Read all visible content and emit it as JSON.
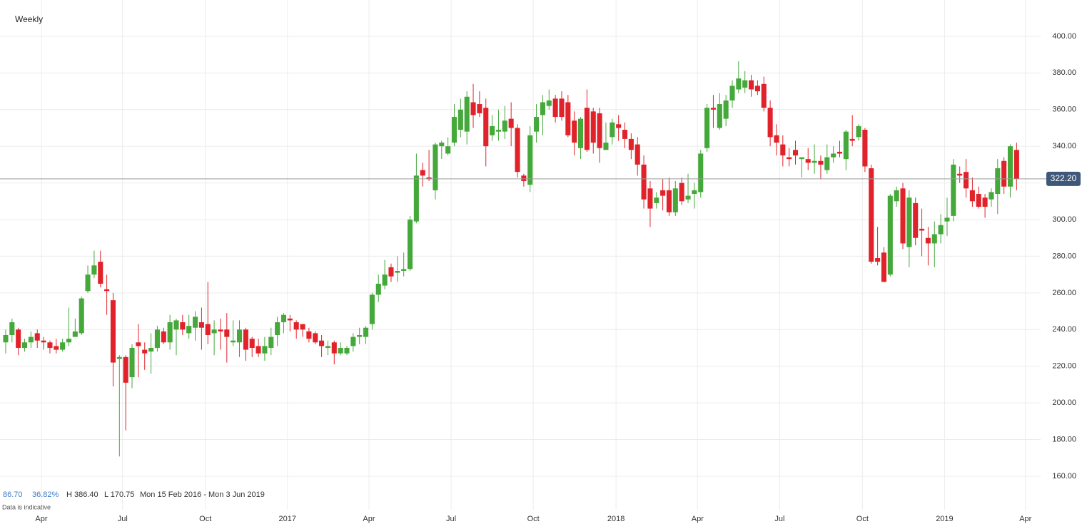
{
  "chart_data": {
    "type": "candlestick",
    "title": "Weekly",
    "x": [
      0,
      1,
      2,
      3,
      4,
      5,
      6,
      7,
      8,
      9,
      10,
      11,
      12,
      13,
      14,
      15,
      16,
      17,
      18,
      19,
      20,
      21,
      22,
      23,
      24,
      25,
      26,
      27,
      28,
      29,
      30,
      31,
      32,
      33,
      34,
      35,
      36,
      37,
      38,
      39,
      40,
      41,
      42,
      43,
      44,
      45,
      46,
      47,
      48,
      49,
      50,
      51,
      52,
      53,
      54,
      55,
      56,
      57,
      58,
      59,
      60,
      61,
      62,
      63,
      64,
      65,
      66,
      67,
      68,
      69,
      70,
      71,
      72,
      73,
      74,
      75,
      76,
      77,
      78,
      79,
      80,
      81,
      82,
      83,
      84,
      85,
      86,
      87,
      88,
      89,
      90,
      91,
      92,
      93,
      94,
      95,
      96,
      97,
      98,
      99,
      100,
      101,
      102,
      103,
      104,
      105,
      106,
      107,
      108,
      109,
      110,
      111,
      112,
      113,
      114,
      115,
      116,
      117,
      118,
      119,
      120,
      121,
      122,
      123,
      124,
      125,
      126,
      127,
      128,
      129,
      130,
      131,
      132,
      133,
      134,
      135,
      136,
      137,
      138,
      139,
      140,
      141,
      142,
      143,
      144,
      145,
      146,
      147,
      148,
      149,
      150,
      151,
      152,
      153,
      154,
      155,
      156,
      157,
      158,
      159,
      160
    ],
    "open": [
      233,
      237,
      240,
      230,
      233,
      238,
      234,
      233,
      231,
      229,
      233,
      236,
      238,
      261,
      270,
      277,
      262,
      256,
      224,
      225,
      214,
      233,
      229,
      228,
      230,
      239,
      233,
      240,
      244,
      238,
      241,
      244,
      243,
      238,
      240,
      240,
      233,
      233,
      240,
      235,
      231,
      227,
      230,
      237,
      244,
      246,
      244,
      243,
      239,
      238,
      234,
      230,
      233,
      227,
      227,
      231,
      236,
      236,
      243,
      259,
      264,
      274,
      271,
      272,
      273,
      299,
      327,
      323,
      316,
      340,
      336,
      342,
      349,
      348,
      364,
      363,
      361,
      346,
      348,
      348,
      355,
      350,
      324,
      319,
      348,
      357,
      362,
      366,
      366,
      364,
      354,
      339,
      361,
      359,
      358,
      338,
      345,
      352,
      349,
      344,
      341,
      330,
      317,
      309,
      316,
      316,
      304,
      320,
      311,
      314,
      315,
      339,
      361,
      350,
      355,
      365,
      371,
      372,
      376,
      373,
      374,
      361,
      346,
      341,
      334,
      338,
      333,
      333,
      331,
      332,
      327,
      334,
      337,
      333,
      344,
      345,
      349,
      328,
      279,
      282,
      270,
      310,
      317,
      285,
      309,
      295,
      290,
      287,
      292,
      299,
      302,
      325,
      326,
      316,
      314,
      312,
      311,
      314,
      332,
      318,
      338
    ],
    "high": [
      240,
      246,
      241,
      235,
      239,
      240,
      236,
      234,
      235,
      235,
      252,
      246,
      258,
      275,
      283,
      283,
      270,
      260,
      226,
      226,
      232,
      243,
      233,
      238,
      242,
      241,
      248,
      246,
      248,
      248,
      250,
      252,
      266,
      245,
      246,
      249,
      245,
      245,
      241,
      236,
      235,
      236,
      241,
      247,
      249,
      248,
      245,
      243,
      241,
      239,
      237,
      234,
      234,
      233,
      231,
      238,
      241,
      242,
      260,
      270,
      278,
      276,
      280,
      282,
      302,
      336,
      331,
      338,
      342,
      343,
      345,
      363,
      366,
      370,
      374,
      370,
      366,
      357,
      360,
      362,
      364,
      352,
      325,
      351,
      363,
      368,
      371,
      368,
      370,
      368,
      359,
      356,
      371,
      361,
      361,
      353,
      355,
      357,
      353,
      347,
      345,
      335,
      321,
      315,
      322,
      323,
      321,
      323,
      325,
      320,
      338,
      363,
      368,
      369,
      368,
      376,
      386.4,
      381,
      379,
      376,
      378,
      365,
      352,
      346,
      339,
      343,
      334,
      339,
      341,
      335,
      341,
      340,
      343,
      349,
      357,
      352,
      350,
      330,
      296,
      285,
      314,
      318,
      320,
      316,
      312,
      306,
      296,
      299,
      303,
      312,
      333,
      329,
      333,
      323,
      318,
      314,
      317,
      333,
      334,
      341,
      342
    ],
    "low": [
      227,
      233,
      226,
      228,
      230,
      230,
      229,
      227,
      227,
      228,
      231,
      236,
      237,
      260,
      268,
      263,
      248,
      209,
      170.75,
      185,
      208,
      214,
      218,
      216,
      228,
      232,
      229,
      226,
      237,
      235,
      234,
      229,
      232,
      226,
      229,
      222,
      231,
      225,
      223,
      225,
      225,
      223,
      226,
      231,
      238,
      239,
      235,
      236,
      233,
      232,
      225,
      226,
      221,
      226,
      226,
      228,
      232,
      232,
      240,
      255,
      262,
      266,
      266,
      269,
      272,
      298,
      318,
      321,
      311,
      333,
      335,
      340,
      345,
      341,
      350,
      356,
      329,
      343,
      343,
      344,
      340,
      323,
      318,
      315,
      342,
      346,
      360,
      353,
      354,
      345,
      335,
      333,
      337,
      336,
      331,
      338,
      341,
      343,
      339,
      333,
      324,
      306,
      296,
      306,
      305,
      302,
      302,
      308,
      309,
      306,
      312,
      337,
      350,
      349,
      351,
      361,
      369,
      369,
      367,
      368,
      359,
      340,
      335,
      329,
      329,
      330,
      323,
      327,
      325,
      322,
      325,
      331,
      334,
      327,
      340,
      343,
      326,
      276,
      275,
      266,
      269,
      307,
      284,
      274,
      286,
      280,
      275,
      274,
      287,
      291,
      299,
      320,
      312,
      307,
      306,
      301,
      307,
      303,
      314,
      312,
      316
    ],
    "close": [
      237,
      244,
      230,
      233,
      236,
      234,
      233,
      230,
      229,
      233,
      235,
      239,
      257,
      270,
      275,
      265,
      261,
      222,
      225,
      211,
      230,
      231,
      227,
      230,
      240,
      233,
      244,
      245,
      240,
      242,
      247,
      241,
      237,
      240,
      239,
      236,
      234,
      240,
      229,
      230,
      227,
      231,
      236,
      244,
      248,
      245,
      240,
      240,
      235,
      233,
      231,
      231,
      227,
      230,
      230,
      236,
      237,
      241,
      259,
      265,
      270,
      269,
      272,
      273,
      300,
      324,
      324,
      322,
      341,
      342,
      340,
      356,
      360,
      367,
      357,
      358,
      340,
      351,
      349,
      354,
      350,
      326,
      321,
      346,
      356,
      364,
      365,
      356,
      356,
      346,
      342,
      355,
      338,
      342,
      339,
      342,
      353,
      350,
      344,
      338,
      330,
      311,
      306,
      312,
      313,
      304,
      317,
      310,
      313,
      316,
      336,
      361,
      360,
      363,
      365,
      373,
      377,
      376,
      371,
      370,
      361,
      345,
      342,
      335,
      333,
      335,
      334,
      331,
      332,
      330,
      334,
      336,
      336,
      348,
      343,
      351,
      329,
      277,
      277,
      266,
      313,
      316,
      287,
      312,
      290,
      294,
      287,
      292,
      297,
      301,
      330,
      324,
      317,
      310,
      307,
      307,
      315,
      328,
      318,
      340,
      322.2
    ],
    "up_color": "#45a83a",
    "down_color": "#e1222a",
    "xlim": [
      -0.9,
      163.8
    ],
    "xticks": [
      {
        "value": 5.65,
        "label": "Apr"
      },
      {
        "value": 18.5,
        "label": "Jul"
      },
      {
        "value": 31.6,
        "label": "Oct"
      },
      {
        "value": 44.6,
        "label": "2017"
      },
      {
        "value": 57.5,
        "label": "Apr"
      },
      {
        "value": 70.5,
        "label": "Jul"
      },
      {
        "value": 83.5,
        "label": "Oct"
      },
      {
        "value": 96.6,
        "label": "2018"
      },
      {
        "value": 109.5,
        "label": "Apr"
      },
      {
        "value": 122.5,
        "label": "Jul"
      },
      {
        "value": 135.6,
        "label": "Oct"
      },
      {
        "value": 148.6,
        "label": "2019"
      },
      {
        "value": 161.4,
        "label": "Apr"
      }
    ],
    "ylim": [
      141.7,
      419.8
    ],
    "yticks": [
      {
        "value": 160,
        "label": "160.00"
      },
      {
        "value": 180,
        "label": "180.00"
      },
      {
        "value": 200,
        "label": "200.00"
      },
      {
        "value": 220,
        "label": "220.00"
      },
      {
        "value": 240,
        "label": "240.00"
      },
      {
        "value": 260,
        "label": "260.00"
      },
      {
        "value": 280,
        "label": "280.00"
      },
      {
        "value": 300,
        "label": "300.00"
      },
      {
        "value": 320,
        "label": "320.00"
      },
      {
        "value": 340,
        "label": "340.00"
      },
      {
        "value": 360,
        "label": "360.00"
      },
      {
        "value": 380,
        "label": "380.00"
      },
      {
        "value": 400,
        "label": "400.00"
      }
    ],
    "grid": true,
    "last_price": {
      "value": 322.2,
      "label": "322.20"
    },
    "stats": {
      "change": "86.70",
      "change_pct": "36.82%",
      "high": "H 386.40",
      "low": "L 170.75",
      "range": "Mon 15 Feb 2016 - Mon 3 Jun 2019",
      "note": "Data is indicative"
    }
  }
}
